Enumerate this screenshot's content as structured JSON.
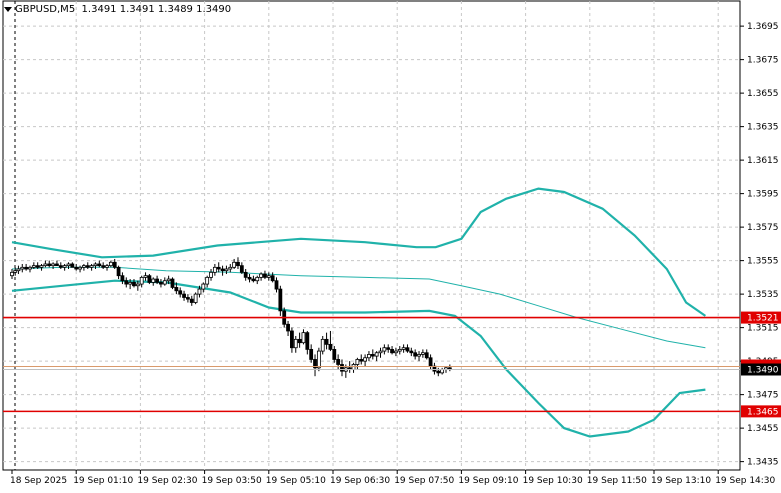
{
  "header": {
    "symbol_label": "GBPUSD,M5",
    "open": "1.3491",
    "high": "1.3491",
    "low": "1.3489",
    "close": "1.3490"
  },
  "colors": {
    "candle": "#000000",
    "bollinger": "#20b2aa",
    "level_line": "#e00000",
    "current_price_bg": "#000000",
    "grid": "#c8c8c8"
  },
  "chart_data": {
    "type": "candlestick",
    "symbol": "GBPUSD",
    "timeframe": "M5",
    "yrange": [
      1.343,
      1.371
    ],
    "y_ticks": [
      "1.3695",
      "1.3675",
      "1.3655",
      "1.3635",
      "1.3615",
      "1.3595",
      "1.3575",
      "1.3555",
      "1.3535",
      "1.3515",
      "1.3495",
      "1.3475",
      "1.3455",
      "1.3435"
    ],
    "x_ticks": [
      "18 Sep 2025",
      "19 Sep 01:10",
      "19 Sep 02:30",
      "19 Sep 03:50",
      "19 Sep 05:10",
      "19 Sep 06:30",
      "19 Sep 07:50",
      "19 Sep 09:10",
      "19 Sep 10:30",
      "19 Sep 11:50",
      "19 Sep 13:10",
      "19 Sep 14:30"
    ],
    "horizontal_levels": [
      {
        "label": "1.3521",
        "value": 1.3521
      },
      {
        "label": "1.3465",
        "value": 1.3465
      }
    ],
    "current_price": {
      "label": "1.3490",
      "value": 1.349
    },
    "bollinger_upper": [
      [
        0,
        1.3566
      ],
      [
        0.6,
        1.3562
      ],
      [
        1.4,
        1.3557
      ],
      [
        2.2,
        1.3558
      ],
      [
        3.2,
        1.3564
      ],
      [
        4.5,
        1.3568
      ],
      [
        5.5,
        1.3566
      ],
      [
        6.3,
        1.3563
      ],
      [
        6.6,
        1.3563
      ],
      [
        7.0,
        1.3568
      ],
      [
        7.3,
        1.3584
      ],
      [
        7.7,
        1.3592
      ],
      [
        8.2,
        1.3598
      ],
      [
        8.6,
        1.3596
      ],
      [
        9.2,
        1.3586
      ],
      [
        9.7,
        1.357
      ],
      [
        10.2,
        1.355
      ],
      [
        10.5,
        1.353
      ],
      [
        10.8,
        1.3522
      ]
    ],
    "bollinger_middle": [
      [
        0,
        1.355
      ],
      [
        0.8,
        1.3551
      ],
      [
        1.6,
        1.3551
      ],
      [
        2.4,
        1.3549
      ],
      [
        3.4,
        1.3548
      ],
      [
        4.5,
        1.3546
      ],
      [
        5.5,
        1.3545
      ],
      [
        6.5,
        1.3544
      ],
      [
        7.0,
        1.354
      ],
      [
        7.6,
        1.3535
      ],
      [
        8.2,
        1.3528
      ],
      [
        8.8,
        1.3521
      ],
      [
        9.5,
        1.3514
      ],
      [
        10.2,
        1.3507
      ],
      [
        10.8,
        1.3503
      ]
    ],
    "bollinger_lower": [
      [
        0,
        1.3537
      ],
      [
        0.8,
        1.354
      ],
      [
        1.6,
        1.3543
      ],
      [
        2.4,
        1.3542
      ],
      [
        3.4,
        1.3536
      ],
      [
        4.0,
        1.3527
      ],
      [
        4.5,
        1.3524
      ],
      [
        5.5,
        1.3524
      ],
      [
        6.5,
        1.3525
      ],
      [
        6.9,
        1.3522
      ],
      [
        7.3,
        1.351
      ],
      [
        7.7,
        1.349
      ],
      [
        8.2,
        1.347
      ],
      [
        8.6,
        1.3455
      ],
      [
        9.0,
        1.345
      ],
      [
        9.6,
        1.3453
      ],
      [
        10.0,
        1.346
      ],
      [
        10.4,
        1.3476
      ],
      [
        10.8,
        1.3478
      ]
    ],
    "candles": [
      [
        0.0,
        1.3546,
        1.355,
        1.3544,
        1.3548
      ],
      [
        0.05,
        1.3548,
        1.3551,
        1.3546,
        1.3549
      ],
      [
        0.1,
        1.3549,
        1.3552,
        1.3547,
        1.355
      ],
      [
        0.16,
        1.355,
        1.3553,
        1.3548,
        1.3551
      ],
      [
        0.22,
        1.3551,
        1.3553,
        1.3549,
        1.355
      ],
      [
        0.28,
        1.355,
        1.3552,
        1.3548,
        1.3551
      ],
      [
        0.34,
        1.3551,
        1.3554,
        1.355,
        1.3552
      ],
      [
        0.4,
        1.3552,
        1.3554,
        1.355,
        1.3551
      ],
      [
        0.46,
        1.3551,
        1.3553,
        1.3549,
        1.3552
      ],
      [
        0.52,
        1.3552,
        1.3555,
        1.3551,
        1.3553
      ],
      [
        0.58,
        1.3553,
        1.3555,
        1.3551,
        1.3552
      ],
      [
        0.64,
        1.3552,
        1.3554,
        1.355,
        1.3553
      ],
      [
        0.7,
        1.3553,
        1.3555,
        1.3552,
        1.3552
      ],
      [
        0.76,
        1.3552,
        1.3554,
        1.355,
        1.3551
      ],
      [
        0.82,
        1.3551,
        1.3553,
        1.3549,
        1.3552
      ],
      [
        0.88,
        1.3552,
        1.3554,
        1.355,
        1.3553
      ],
      [
        0.94,
        1.3553,
        1.3554,
        1.3551,
        1.3551
      ],
      [
        1.0,
        1.3551,
        1.3553,
        1.3549,
        1.355
      ],
      [
        1.06,
        1.355,
        1.3552,
        1.3548,
        1.3551
      ],
      [
        1.12,
        1.3551,
        1.3553,
        1.3549,
        1.3552
      ],
      [
        1.18,
        1.3552,
        1.3554,
        1.355,
        1.3551
      ],
      [
        1.24,
        1.3551,
        1.3553,
        1.3549,
        1.3552
      ],
      [
        1.3,
        1.3552,
        1.3554,
        1.355,
        1.3553
      ],
      [
        1.36,
        1.3553,
        1.3555,
        1.3551,
        1.3552
      ],
      [
        1.42,
        1.3552,
        1.3554,
        1.355,
        1.3551
      ],
      [
        1.48,
        1.3551,
        1.3553,
        1.3549,
        1.3552
      ],
      [
        1.54,
        1.3552,
        1.3555,
        1.3551,
        1.3554
      ],
      [
        1.6,
        1.3554,
        1.3556,
        1.355,
        1.3551
      ],
      [
        1.66,
        1.3551,
        1.3552,
        1.3544,
        1.3546
      ],
      [
        1.72,
        1.3546,
        1.3548,
        1.3541,
        1.3543
      ],
      [
        1.78,
        1.3543,
        1.3545,
        1.3539,
        1.3541
      ],
      [
        1.84,
        1.3541,
        1.3544,
        1.3538,
        1.3542
      ],
      [
        1.9,
        1.3542,
        1.3544,
        1.3539,
        1.354
      ],
      [
        1.96,
        1.354,
        1.3543,
        1.3537,
        1.3541
      ],
      [
        2.02,
        1.3541,
        1.3546,
        1.3539,
        1.3545
      ],
      [
        2.08,
        1.3545,
        1.3548,
        1.3543,
        1.3546
      ],
      [
        2.14,
        1.3546,
        1.3547,
        1.3541,
        1.3542
      ],
      [
        2.2,
        1.3542,
        1.3545,
        1.354,
        1.3544
      ],
      [
        2.26,
        1.3544,
        1.3546,
        1.3541,
        1.3542
      ],
      [
        2.32,
        1.3542,
        1.3544,
        1.3539,
        1.3541
      ],
      [
        2.38,
        1.3541,
        1.3545,
        1.354,
        1.3543
      ],
      [
        2.44,
        1.3543,
        1.3546,
        1.3541,
        1.3544
      ],
      [
        2.5,
        1.3544,
        1.3545,
        1.3538,
        1.3539
      ],
      [
        2.56,
        1.3539,
        1.3542,
        1.3535,
        1.3537
      ],
      [
        2.62,
        1.3537,
        1.3539,
        1.3533,
        1.3535
      ],
      [
        2.68,
        1.3535,
        1.3537,
        1.3531,
        1.3533
      ],
      [
        2.74,
        1.3533,
        1.3535,
        1.353,
        1.3532
      ],
      [
        2.8,
        1.3532,
        1.3534,
        1.3528,
        1.353
      ],
      [
        2.86,
        1.353,
        1.3536,
        1.3529,
        1.3535
      ],
      [
        2.92,
        1.3535,
        1.354,
        1.3533,
        1.3538
      ],
      [
        2.98,
        1.3538,
        1.3542,
        1.3536,
        1.3541
      ],
      [
        3.04,
        1.3541,
        1.3546,
        1.3539,
        1.3545
      ],
      [
        3.1,
        1.3545,
        1.355,
        1.3543,
        1.3548
      ],
      [
        3.16,
        1.3548,
        1.3553,
        1.3546,
        1.3551
      ],
      [
        3.22,
        1.3551,
        1.3554,
        1.3548,
        1.355
      ],
      [
        3.28,
        1.355,
        1.3552,
        1.3546,
        1.3549
      ],
      [
        3.34,
        1.3549,
        1.3552,
        1.3547,
        1.355
      ],
      [
        3.4,
        1.355,
        1.3553,
        1.3548,
        1.3551
      ],
      [
        3.46,
        1.3551,
        1.3556,
        1.355,
        1.3554
      ],
      [
        3.52,
        1.3554,
        1.3557,
        1.355,
        1.3552
      ],
      [
        3.58,
        1.3552,
        1.3554,
        1.3547,
        1.3548
      ],
      [
        3.64,
        1.3548,
        1.355,
        1.3543,
        1.3545
      ],
      [
        3.7,
        1.3545,
        1.3547,
        1.3542,
        1.3544
      ],
      [
        3.76,
        1.3544,
        1.3546,
        1.3542,
        1.3543
      ],
      [
        3.82,
        1.3543,
        1.3546,
        1.3541,
        1.3545
      ],
      [
        3.88,
        1.3545,
        1.3548,
        1.3543,
        1.3547
      ],
      [
        3.94,
        1.3547,
        1.3549,
        1.3544,
        1.3545
      ],
      [
        4.0,
        1.3545,
        1.3548,
        1.3543,
        1.3546
      ],
      [
        4.06,
        1.3546,
        1.3548,
        1.3542,
        1.3543
      ],
      [
        4.12,
        1.3543,
        1.3545,
        1.3536,
        1.3538
      ],
      [
        4.18,
        1.3538,
        1.354,
        1.3522,
        1.3525
      ],
      [
        4.24,
        1.3525,
        1.3527,
        1.3515,
        1.3517
      ],
      [
        4.3,
        1.3517,
        1.3519,
        1.351,
        1.3513
      ],
      [
        4.36,
        1.3513,
        1.3515,
        1.35,
        1.3503
      ],
      [
        4.42,
        1.3503,
        1.351,
        1.35,
        1.3508
      ],
      [
        4.48,
        1.3508,
        1.3512,
        1.3503,
        1.3506
      ],
      [
        4.54,
        1.3506,
        1.3514,
        1.3505,
        1.3512
      ],
      [
        4.6,
        1.3512,
        1.3513,
        1.3499,
        1.3502
      ],
      [
        4.66,
        1.3502,
        1.3505,
        1.3494,
        1.3496
      ],
      [
        4.72,
        1.3496,
        1.3499,
        1.3486,
        1.3491
      ],
      [
        4.78,
        1.3491,
        1.3503,
        1.3489,
        1.3501
      ],
      [
        4.84,
        1.3501,
        1.351,
        1.3499,
        1.3508
      ],
      [
        4.9,
        1.3508,
        1.3512,
        1.3502,
        1.3505
      ],
      [
        4.96,
        1.3505,
        1.3513,
        1.3501,
        1.3502
      ],
      [
        5.02,
        1.3502,
        1.3504,
        1.3494,
        1.3496
      ],
      [
        5.08,
        1.3496,
        1.3499,
        1.349,
        1.3493
      ],
      [
        5.14,
        1.3493,
        1.3496,
        1.3486,
        1.3489
      ],
      [
        5.2,
        1.3489,
        1.3493,
        1.3485,
        1.3491
      ],
      [
        5.26,
        1.3491,
        1.3495,
        1.3488,
        1.349
      ],
      [
        5.32,
        1.349,
        1.3494,
        1.3488,
        1.3493
      ],
      [
        5.38,
        1.3493,
        1.3497,
        1.349,
        1.3496
      ],
      [
        5.44,
        1.3496,
        1.3499,
        1.3493,
        1.3495
      ],
      [
        5.5,
        1.3495,
        1.3499,
        1.3492,
        1.3497
      ],
      [
        5.56,
        1.3497,
        1.3501,
        1.3495,
        1.3499
      ],
      [
        5.62,
        1.3499,
        1.3502,
        1.3496,
        1.3498
      ],
      [
        5.68,
        1.3498,
        1.3501,
        1.3495,
        1.35
      ],
      [
        5.74,
        1.35,
        1.3503,
        1.3497,
        1.3501
      ],
      [
        5.8,
        1.3501,
        1.3505,
        1.3499,
        1.3503
      ],
      [
        5.86,
        1.3503,
        1.3505,
        1.35,
        1.3502
      ],
      [
        5.92,
        1.3502,
        1.3504,
        1.3499,
        1.35
      ],
      [
        5.98,
        1.35,
        1.3503,
        1.3498,
        1.3501
      ],
      [
        6.04,
        1.3501,
        1.3504,
        1.3499,
        1.3502
      ],
      [
        6.1,
        1.3502,
        1.3505,
        1.35,
        1.3503
      ],
      [
        6.16,
        1.3503,
        1.3505,
        1.35,
        1.3501
      ],
      [
        6.22,
        1.3501,
        1.3503,
        1.3498,
        1.35
      ],
      [
        6.28,
        1.35,
        1.3502,
        1.3496,
        1.3498
      ],
      [
        6.34,
        1.3498,
        1.3501,
        1.3495,
        1.3499
      ],
      [
        6.4,
        1.3499,
        1.3502,
        1.3497,
        1.35
      ],
      [
        6.46,
        1.35,
        1.3502,
        1.3496,
        1.3497
      ],
      [
        6.52,
        1.3497,
        1.3499,
        1.349,
        1.3492
      ],
      [
        6.58,
        1.3492,
        1.3494,
        1.3487,
        1.3489
      ],
      [
        6.64,
        1.3489,
        1.3491,
        1.3486,
        1.3488
      ],
      [
        6.7,
        1.3488,
        1.3491,
        1.3487,
        1.349
      ],
      [
        6.76,
        1.349,
        1.3492,
        1.3488,
        1.3491
      ],
      [
        6.82,
        1.3491,
        1.3493,
        1.3489,
        1.349
      ]
    ]
  }
}
